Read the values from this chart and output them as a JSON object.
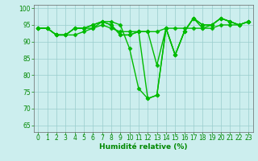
{
  "lines": [
    {
      "x": [
        0,
        1,
        2,
        3,
        4,
        5,
        6,
        7,
        8,
        9,
        10,
        11,
        12,
        13,
        14,
        15,
        16,
        17,
        18,
        19,
        20,
        21,
        22,
        23
      ],
      "y": [
        94,
        94,
        92,
        92,
        92,
        93,
        94,
        96,
        96,
        95,
        88,
        76,
        73,
        74,
        94,
        86,
        93,
        97,
        94,
        95,
        97,
        96,
        95,
        96
      ]
    },
    {
      "x": [
        0,
        1,
        2,
        3,
        4,
        5,
        6,
        7,
        8,
        9,
        10,
        11,
        12,
        13,
        14,
        15,
        16,
        17,
        18,
        19,
        20,
        21,
        22,
        23
      ],
      "y": [
        94,
        94,
        92,
        92,
        94,
        94,
        94,
        95,
        94,
        93,
        93,
        93,
        93,
        93,
        94,
        94,
        94,
        94,
        94,
        94,
        95,
        95,
        95,
        96
      ]
    },
    {
      "x": [
        0,
        1,
        2,
        3,
        4,
        5,
        6,
        7,
        8,
        9,
        10,
        11,
        12,
        13,
        14,
        15,
        16,
        17,
        18,
        19,
        20,
        21,
        22,
        23
      ],
      "y": [
        94,
        94,
        92,
        92,
        94,
        94,
        95,
        96,
        95,
        92,
        92,
        93,
        93,
        83,
        94,
        86,
        93,
        97,
        95,
        95,
        97,
        96,
        95,
        96
      ]
    },
    {
      "x": [
        0,
        1,
        2,
        3,
        4,
        5,
        6,
        7,
        8,
        9,
        10,
        11,
        12,
        13,
        14,
        15,
        16,
        17,
        18,
        19,
        20,
        21,
        22,
        23
      ],
      "y": [
        94,
        94,
        92,
        92,
        94,
        94,
        95,
        96,
        95,
        92,
        92,
        93,
        73,
        74,
        94,
        86,
        93,
        97,
        95,
        95,
        97,
        96,
        95,
        96
      ]
    }
  ],
  "line_color": "#00bb00",
  "marker": "D",
  "markersize": 2.5,
  "linewidth": 1.0,
  "xlabel": "Humidité relative (%)",
  "xlabel_color": "#008800",
  "xlabel_fontsize": 6.5,
  "background_color": "#cceeee",
  "grid_color": "#99cccc",
  "ylim": [
    63,
    101
  ],
  "xlim": [
    -0.5,
    23.5
  ],
  "yticks": [
    65,
    70,
    75,
    80,
    85,
    90,
    95,
    100
  ],
  "xticks": [
    0,
    1,
    2,
    3,
    4,
    5,
    6,
    7,
    8,
    9,
    10,
    11,
    12,
    13,
    14,
    15,
    16,
    17,
    18,
    19,
    20,
    21,
    22,
    23
  ],
  "tick_color": "#008800",
  "tick_fontsize": 5.5,
  "spine_color": "#666666"
}
